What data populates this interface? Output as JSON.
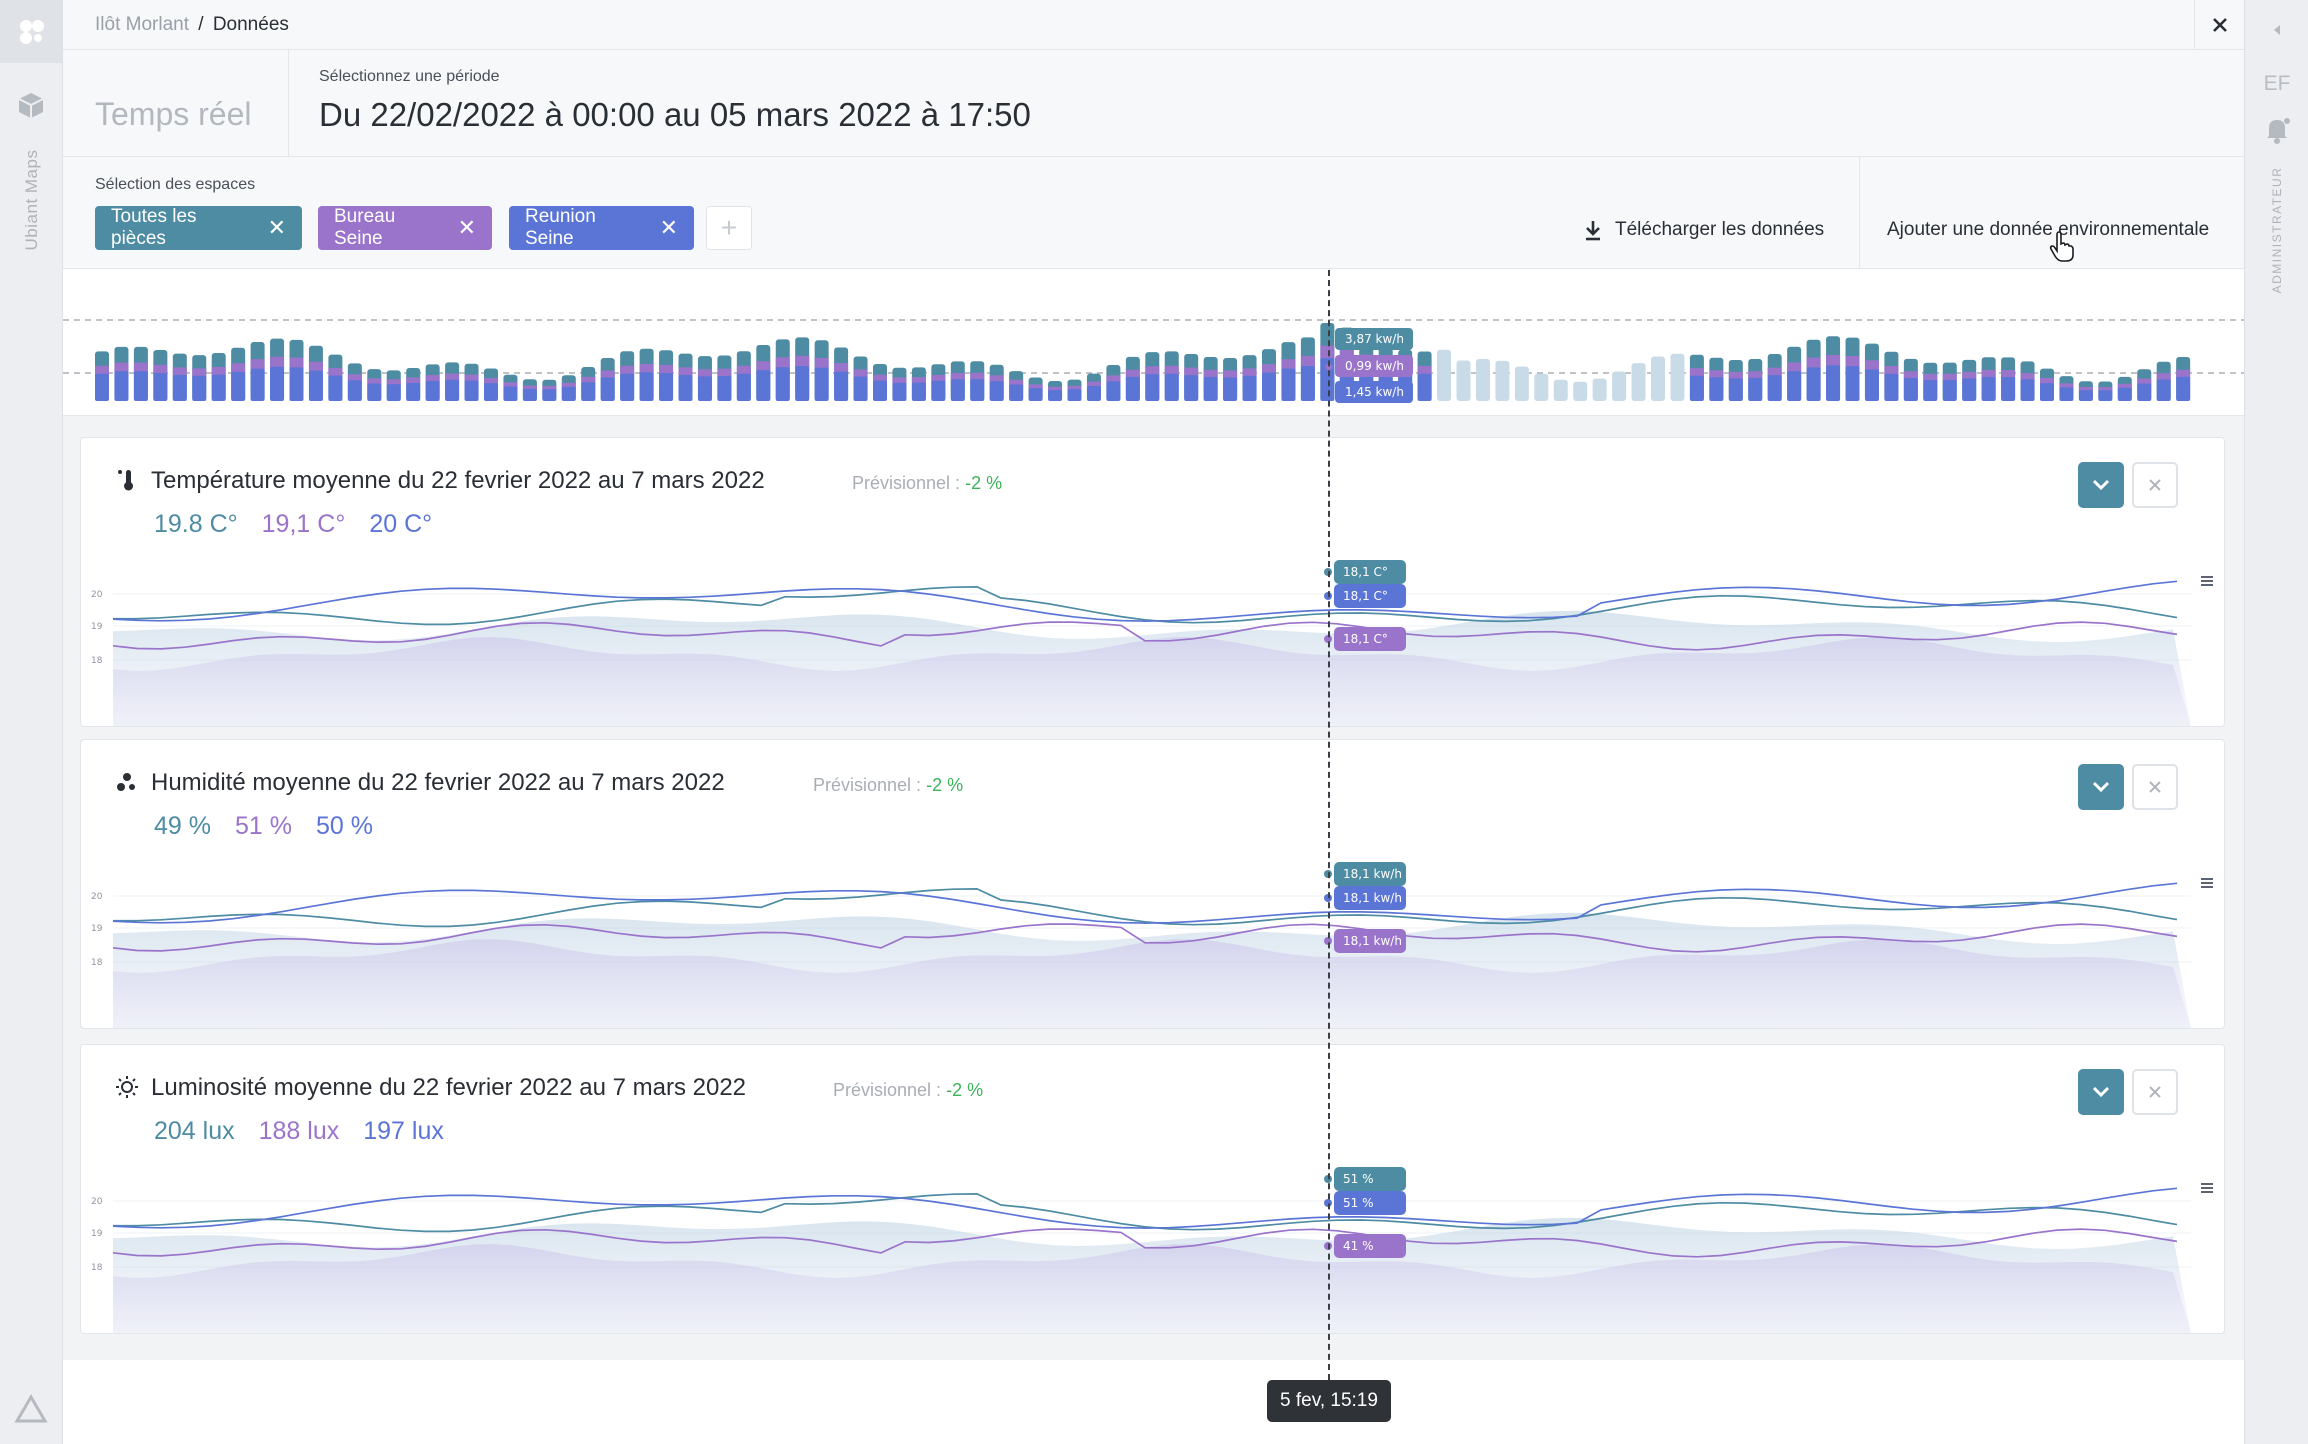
{
  "app": {
    "rail_vertical_label": "Ubiant Maps",
    "user_initials": "EF",
    "role_label": "ADMINISTRATEUR"
  },
  "breadcrumb": {
    "parent": "Ilôt Morlant",
    "separator": "/",
    "current": "Données"
  },
  "period": {
    "realtime_label": "Temps réel",
    "label": "Sélectionnez une période",
    "value": "Du 22/02/2022 à 00:00 au 05 mars 2022 à 17:50"
  },
  "spaces": {
    "label": "Sélection des espaces",
    "chips": [
      {
        "label": "Toutes les pièces",
        "color": "#4d8ca3"
      },
      {
        "label": "Bureau Seine",
        "color": "#9a74cb"
      },
      {
        "label": "Reunion Seine",
        "color": "#5b75d6"
      }
    ],
    "add_label": "+",
    "download_label": "Télécharger les données",
    "add_env_label": "Ajouter une donnée environnementale"
  },
  "overview": {
    "tooltips": [
      "3,87 kw/h",
      "0,99 kw/h",
      "1,45 kw/h"
    ]
  },
  "panels": [
    {
      "title": "Température moyenne du 22 fevrier 2022 au 7 mars 2022",
      "forecast_label": "Prévisionnel :",
      "forecast_value": "-2 %",
      "values": [
        "19.8 C°",
        "19,1 C°",
        "20 C°"
      ],
      "y_ticks": [
        "20",
        "19",
        "18"
      ],
      "tooltips": [
        "18,1 C°",
        "18,1 C°",
        "18,1 C°"
      ],
      "icon": "thermometer-icon"
    },
    {
      "title": "Humidité moyenne du 22 fevrier 2022 au 7 mars 2022",
      "forecast_label": "Prévisionnel :",
      "forecast_value": "-2 %",
      "values": [
        "49 %",
        "51 %",
        "50 %"
      ],
      "y_ticks": [
        "20",
        "19",
        "18"
      ],
      "tooltips": [
        "18,1 kw/h",
        "18,1 kw/h",
        "18,1 kw/h"
      ],
      "icon": "droplets-icon"
    },
    {
      "title": "Luminosité moyenne du 22 fevrier 2022 au 7 mars 2022",
      "forecast_label": "Prévisionnel :",
      "forecast_value": "-2 %",
      "values": [
        "204 lux",
        "188 lux",
        "197 lux"
      ],
      "y_ticks": [
        "20",
        "19",
        "18"
      ],
      "tooltips": [
        "51 %",
        "51 %",
        "41 %"
      ],
      "icon": "sun-icon"
    }
  ],
  "cursor_time": "5 fev, 15:19",
  "colors": {
    "teal": "#4d8ca3",
    "purple": "#9a74cb",
    "blue": "#5b75d6",
    "positive": "#3cb35a"
  }
}
